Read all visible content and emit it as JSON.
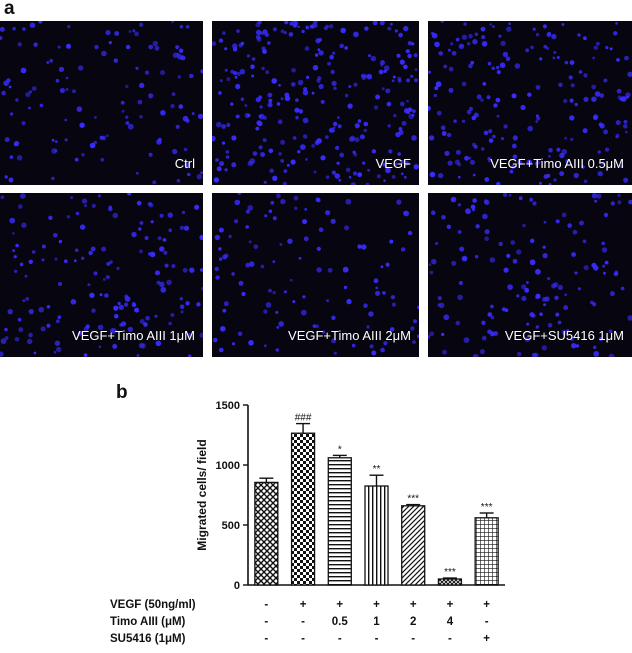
{
  "panel_a": {
    "letter": "a",
    "images": [
      {
        "label": "Ctrl",
        "density": 120
      },
      {
        "label": "VEGF",
        "density": 260
      },
      {
        "label": "VEGF+Timo AIII  0.5μM",
        "density": 190
      },
      {
        "label": "VEGF+Timo AIII  1μM",
        "density": 150
      },
      {
        "label": "VEGF+Timo AIII  2μM",
        "density": 110
      },
      {
        "label": "VEGF+SU5416  1μM",
        "density": 140
      }
    ],
    "nucleus_color": "#3a2cff",
    "background_color": "#060510"
  },
  "panel_b": {
    "letter": "b"
  },
  "chart_data": {
    "type": "bar",
    "ylabel": "Migrated cells/ field",
    "ylim": [
      0,
      1500
    ],
    "yticks": [
      0,
      500,
      1000,
      1500
    ],
    "bars": [
      {
        "value": 855,
        "error": 35,
        "pattern": "diamond",
        "sig": ""
      },
      {
        "value": 1265,
        "error": 80,
        "pattern": "checker",
        "sig": "###"
      },
      {
        "value": 1060,
        "error": 20,
        "pattern": "hstripe",
        "sig": "*"
      },
      {
        "value": 825,
        "error": 90,
        "pattern": "vstripe",
        "sig": "**"
      },
      {
        "value": 660,
        "error": 10,
        "pattern": "diagonal",
        "sig": "***"
      },
      {
        "value": 50,
        "error": 8,
        "pattern": "crosshatch",
        "sig": "***"
      },
      {
        "value": 560,
        "error": 40,
        "pattern": "grid",
        "sig": "***"
      }
    ],
    "conditions": [
      {
        "label": "VEGF (50ng/ml)",
        "values": [
          "-",
          "+",
          "+",
          "+",
          "+",
          "+",
          "+"
        ]
      },
      {
        "label": "Timo AIII (μM)",
        "values": [
          "-",
          "-",
          "0.5",
          "1",
          "2",
          "4",
          "-"
        ]
      },
      {
        "label": "SU5416 (1μM)",
        "values": [
          "-",
          "-",
          "-",
          "-",
          "-",
          "-",
          "+"
        ]
      }
    ]
  }
}
